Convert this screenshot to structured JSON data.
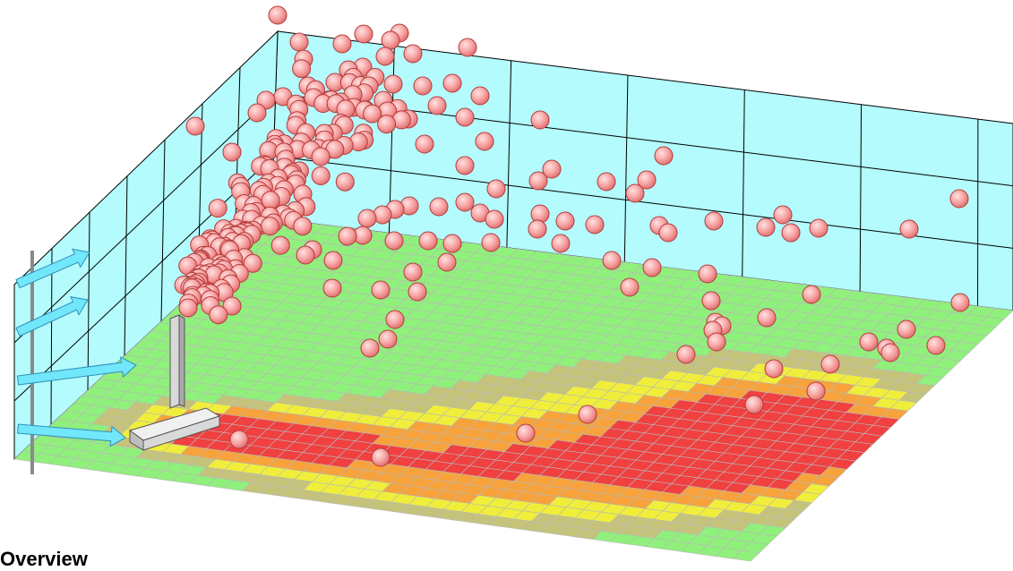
{
  "caption": "Overview",
  "colors": {
    "back_wall": "#b3fbfd",
    "wall_line": "#000000",
    "ground_low": "#8ff07b",
    "ground_mid": "#c5c37a",
    "ground_elevated": "#f0ee3a",
    "ground_high": "#f7a23a",
    "ground_peak": "#f04040",
    "grid_line": "#b9b9b9",
    "particle": "#f7a3a3",
    "particle_edge": "#b43a3a",
    "wind_arrow": "#72e6fb",
    "chimney": "#d9d9d9"
  },
  "icons": [
    "wind-arrow-icon",
    "chimney-stack-icon",
    "smoke-particle-icon"
  ]
}
